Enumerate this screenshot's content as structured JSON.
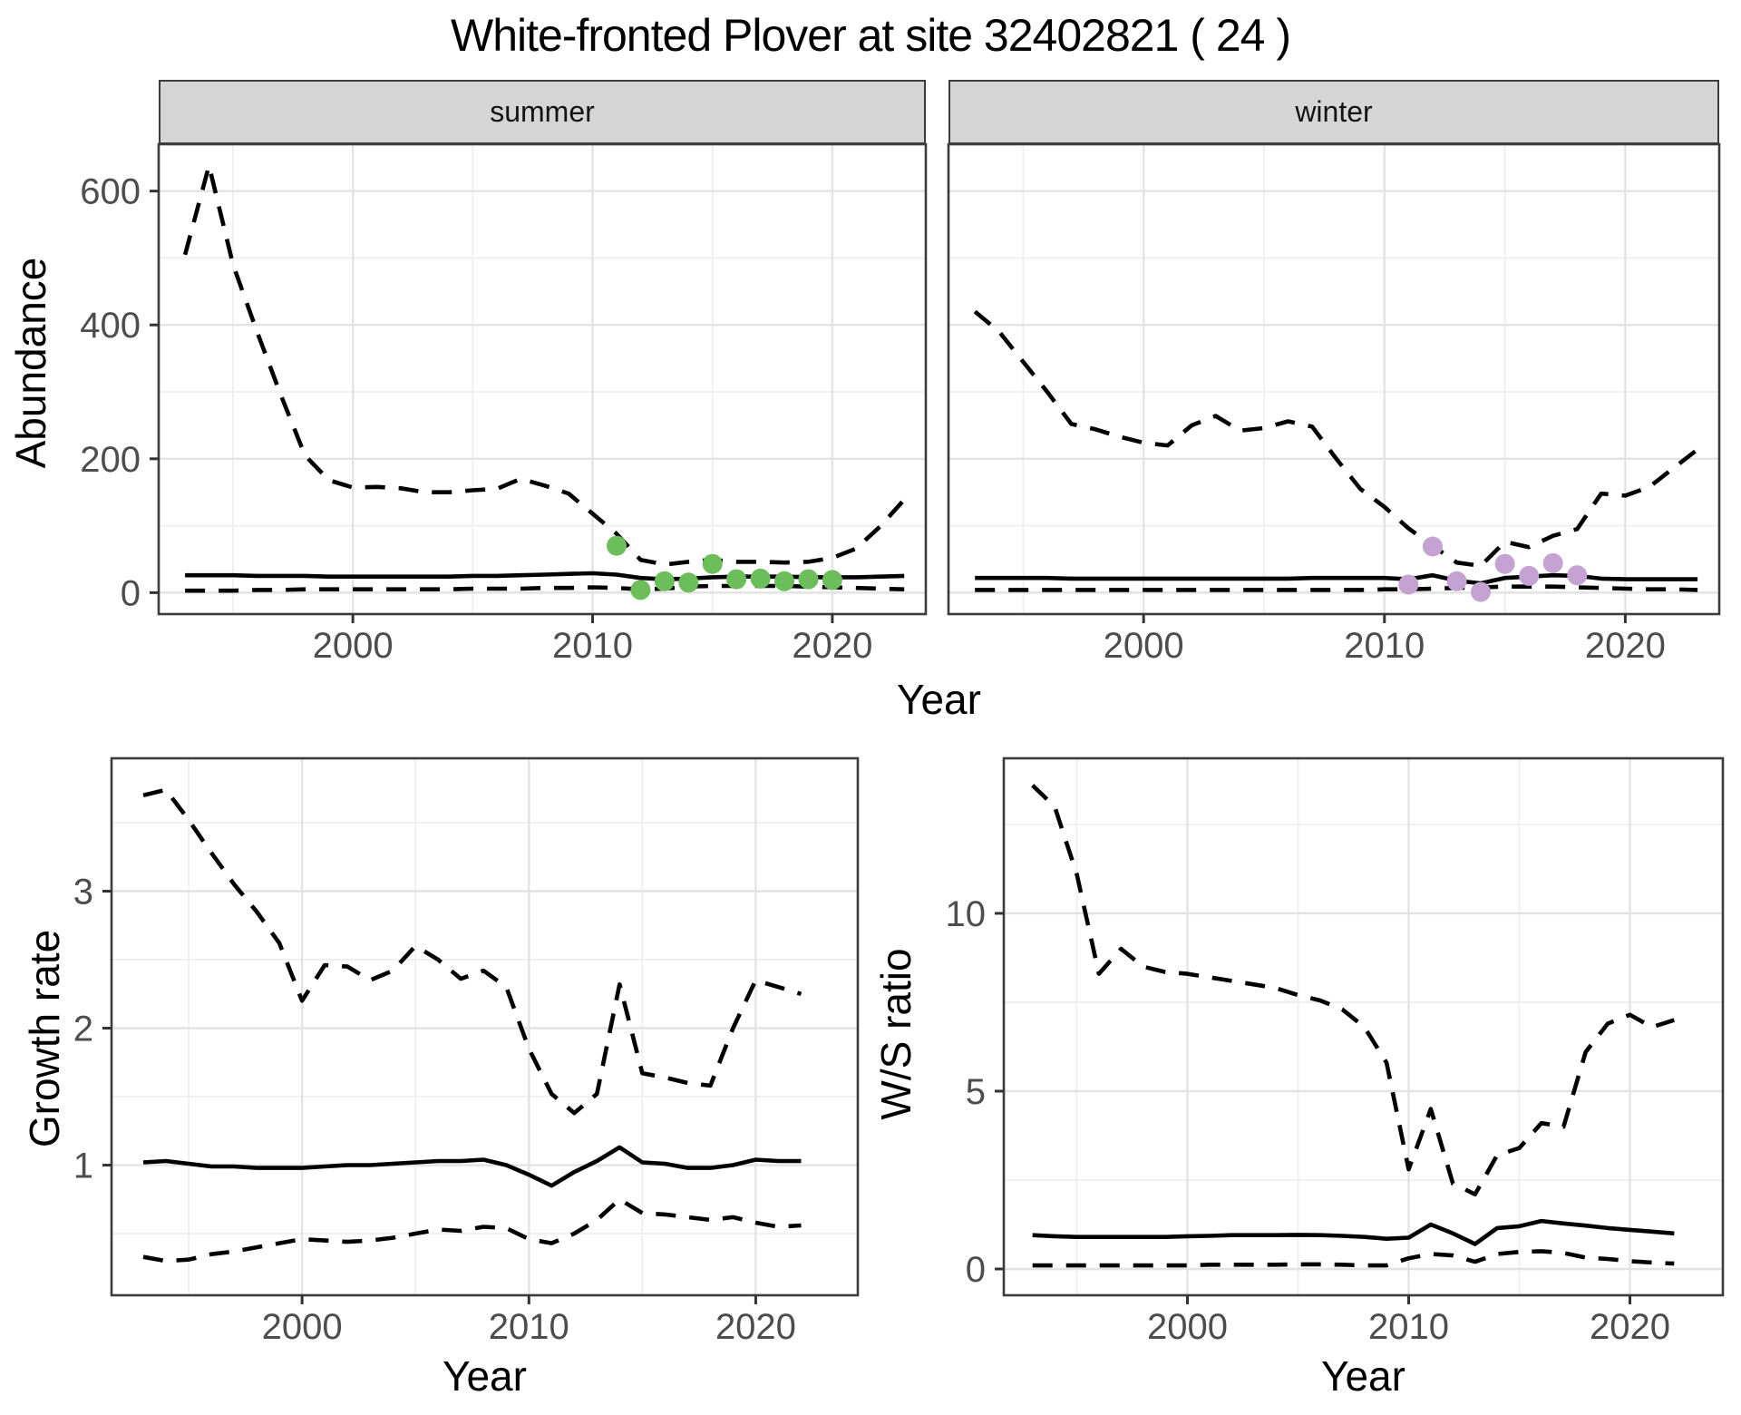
{
  "page": {
    "title": "White-fronted Plover at site 32402821 ( 24 )",
    "top_xlabel": "Year",
    "colors": {
      "summer_point": "#6cbe5b",
      "winter_point": "#c4a3d2",
      "line": "#000000",
      "grid_major": "#e3e3e3",
      "grid_minor": "#efefef",
      "panel_border": "#3c3c3c",
      "strip_fill": "#d5d5d5",
      "tick_text": "#4d4d4d"
    }
  },
  "chart_data": [
    {
      "id": "abundance-summer",
      "type": "line",
      "facet_label": "summer",
      "ylabel": "Abundance",
      "xlabel": "Year",
      "legend": "none",
      "grid": true,
      "x": [
        1993,
        1994,
        1995,
        1996,
        1997,
        1998,
        1999,
        2000,
        2001,
        2002,
        2003,
        2004,
        2005,
        2006,
        2007,
        2008,
        2009,
        2010,
        2011,
        2012,
        2013,
        2014,
        2015,
        2016,
        2017,
        2018,
        2019,
        2020,
        2021,
        2022,
        2023
      ],
      "series": [
        {
          "name": "upper_95",
          "style": "dashed",
          "values": [
            505,
            638,
            490,
            390,
            295,
            205,
            168,
            157,
            158,
            156,
            150,
            150,
            153,
            155,
            170,
            160,
            148,
            118,
            88,
            49,
            42,
            46,
            49,
            46,
            46,
            45,
            46,
            52,
            66,
            99,
            139
          ]
        },
        {
          "name": "median",
          "style": "solid",
          "values": [
            26,
            26,
            26,
            25,
            25,
            25,
            24,
            24,
            24,
            24,
            24,
            24,
            25,
            25,
            26,
            27,
            28,
            29,
            27,
            22,
            20,
            21,
            23,
            24,
            24,
            24,
            23,
            23,
            23,
            24,
            25
          ]
        },
        {
          "name": "lower_5",
          "style": "dashed",
          "values": [
            3,
            3,
            3,
            4,
            4,
            5,
            5,
            5,
            5,
            5,
            5,
            5,
            6,
            6,
            6,
            7,
            7,
            8,
            7,
            5,
            6,
            9,
            10,
            10,
            10,
            10,
            9,
            8,
            7,
            6,
            5
          ]
        }
      ],
      "points": {
        "name": "observed-counts-summer",
        "color": "#6cbe5b",
        "x": [
          2011,
          2012,
          2013,
          2014,
          2015,
          2016,
          2017,
          2018,
          2019,
          2020
        ],
        "y": [
          70,
          4,
          17,
          15,
          43,
          20,
          21,
          17,
          20,
          19
        ]
      },
      "xlim": [
        1991.9,
        2023.9
      ],
      "ylim": [
        -32,
        670
      ],
      "xticks": [
        2000,
        2010,
        2020
      ],
      "yticks": [
        0,
        200,
        400,
        600
      ],
      "xticks_minor": [
        1995,
        2005,
        2015
      ],
      "yticks_minor": [
        100,
        300,
        500
      ]
    },
    {
      "id": "abundance-winter",
      "type": "line",
      "facet_label": "winter",
      "ylabel": "Abundance",
      "xlabel": "Year",
      "legend": "none",
      "grid": true,
      "x": [
        1993,
        1994,
        1995,
        1996,
        1997,
        1998,
        1999,
        2000,
        2001,
        2002,
        2003,
        2004,
        2005,
        2006,
        2007,
        2008,
        2009,
        2010,
        2011,
        2012,
        2013,
        2014,
        2015,
        2016,
        2017,
        2018,
        2019,
        2020,
        2021,
        2022,
        2023
      ],
      "series": [
        {
          "name": "upper_95",
          "style": "dashed",
          "values": [
            420,
            390,
            345,
            300,
            252,
            244,
            233,
            224,
            220,
            250,
            264,
            242,
            246,
            256,
            248,
            200,
            155,
            128,
            96,
            70,
            45,
            40,
            76,
            68,
            85,
            95,
            148,
            145,
            158,
            186,
            214
          ]
        },
        {
          "name": "median",
          "style": "solid",
          "values": [
            22,
            22,
            22,
            22,
            21,
            21,
            21,
            21,
            21,
            21,
            21,
            21,
            21,
            21,
            22,
            22,
            22,
            22,
            20,
            26,
            18,
            14,
            22,
            24,
            26,
            25,
            21,
            20,
            20,
            20,
            20
          ]
        },
        {
          "name": "lower_5",
          "style": "dashed",
          "values": [
            4,
            4,
            4,
            4,
            4,
            4,
            4,
            4,
            4,
            4,
            4,
            4,
            4,
            4,
            4,
            4,
            4,
            5,
            5,
            6,
            7,
            8,
            9,
            9,
            9,
            8,
            7,
            6,
            5,
            5,
            4
          ]
        }
      ],
      "points": {
        "name": "observed-counts-winter",
        "color": "#c4a3d2",
        "x": [
          2011,
          2012,
          2013,
          2014,
          2015,
          2016,
          2017,
          2018
        ],
        "y": [
          12,
          69,
          17,
          1,
          43,
          25,
          44,
          26
        ]
      },
      "xlim": [
        1991.9,
        2023.9
      ],
      "ylim": [
        -32,
        670
      ],
      "xticks": [
        2000,
        2010,
        2020
      ],
      "yticks": [],
      "xticks_minor": [
        1995,
        2005,
        2015
      ],
      "yticks_minor": [
        100,
        300,
        500
      ],
      "ygrid": [
        0,
        200,
        400,
        600
      ]
    },
    {
      "id": "growth-rate",
      "type": "line",
      "ylabel": "Growth rate",
      "xlabel": "Year",
      "legend": "none",
      "grid": true,
      "x": [
        1993,
        1994,
        1995,
        1996,
        1997,
        1998,
        1999,
        2000,
        2001,
        2002,
        2003,
        2004,
        2005,
        2006,
        2007,
        2008,
        2009,
        2010,
        2011,
        2012,
        2013,
        2014,
        2015,
        2016,
        2017,
        2018,
        2019,
        2020,
        2021,
        2022
      ],
      "series": [
        {
          "name": "upper_95",
          "style": "dashed",
          "values": [
            3.7,
            3.74,
            3.52,
            3.28,
            3.05,
            2.85,
            2.62,
            2.2,
            2.46,
            2.45,
            2.35,
            2.42,
            2.6,
            2.5,
            2.36,
            2.42,
            2.3,
            1.85,
            1.52,
            1.38,
            1.52,
            2.32,
            1.67,
            1.64,
            1.6,
            1.58,
            2.0,
            2.35,
            2.3,
            2.25
          ]
        },
        {
          "name": "median",
          "style": "solid",
          "values": [
            1.02,
            1.03,
            1.01,
            0.99,
            0.99,
            0.98,
            0.98,
            0.98,
            0.99,
            1.0,
            1.0,
            1.01,
            1.02,
            1.03,
            1.03,
            1.04,
            1.0,
            0.93,
            0.85,
            0.95,
            1.03,
            1.13,
            1.02,
            1.01,
            0.98,
            0.98,
            1.0,
            1.04,
            1.03,
            1.03
          ]
        },
        {
          "name": "lower_5",
          "style": "dashed",
          "values": [
            0.33,
            0.3,
            0.31,
            0.35,
            0.37,
            0.4,
            0.43,
            0.46,
            0.45,
            0.44,
            0.45,
            0.47,
            0.5,
            0.53,
            0.52,
            0.55,
            0.54,
            0.46,
            0.43,
            0.5,
            0.6,
            0.75,
            0.65,
            0.64,
            0.62,
            0.6,
            0.62,
            0.58,
            0.55,
            0.56
          ]
        }
      ],
      "xlim": [
        1991.6,
        2024.5
      ],
      "ylim": [
        0.05,
        3.97
      ],
      "xticks": [
        2000,
        2010,
        2020
      ],
      "yticks": [
        1,
        2,
        3
      ],
      "xticks_minor": [
        1995,
        2005,
        2015
      ],
      "yticks_minor": [
        0.5,
        1.5,
        2.5,
        3.5
      ]
    },
    {
      "id": "ws-ratio",
      "type": "line",
      "ylabel": "W/S ratio",
      "xlabel": "Year",
      "legend": "none",
      "grid": true,
      "x": [
        1993,
        1994,
        1995,
        1996,
        1997,
        1998,
        1999,
        2000,
        2001,
        2002,
        2003,
        2004,
        2005,
        2006,
        2007,
        2008,
        2009,
        2010,
        2011,
        2012,
        2013,
        2014,
        2015,
        2016,
        2017,
        2018,
        2019,
        2020,
        2021,
        2022
      ],
      "series": [
        {
          "name": "upper_95",
          "style": "dashed",
          "values": [
            13.6,
            13.0,
            11.1,
            8.3,
            9.0,
            8.5,
            8.35,
            8.3,
            8.2,
            8.1,
            8.0,
            7.9,
            7.7,
            7.55,
            7.3,
            6.8,
            5.8,
            2.8,
            4.5,
            2.4,
            2.1,
            3.2,
            3.4,
            4.1,
            4.0,
            6.1,
            6.9,
            7.15,
            6.8,
            7.0
          ]
        },
        {
          "name": "median",
          "style": "solid",
          "values": [
            0.95,
            0.92,
            0.9,
            0.9,
            0.9,
            0.9,
            0.9,
            0.92,
            0.93,
            0.95,
            0.95,
            0.95,
            0.96,
            0.95,
            0.93,
            0.9,
            0.85,
            0.88,
            1.25,
            1.0,
            0.7,
            1.15,
            1.2,
            1.35,
            1.28,
            1.22,
            1.15,
            1.1,
            1.05,
            1.0
          ]
        },
        {
          "name": "lower_5",
          "style": "dashed",
          "values": [
            0.1,
            0.1,
            0.1,
            0.1,
            0.1,
            0.1,
            0.1,
            0.1,
            0.12,
            0.12,
            0.12,
            0.12,
            0.13,
            0.13,
            0.12,
            0.1,
            0.1,
            0.3,
            0.42,
            0.38,
            0.2,
            0.42,
            0.48,
            0.5,
            0.45,
            0.32,
            0.28,
            0.22,
            0.18,
            0.15
          ]
        }
      ],
      "xlim": [
        1991.7,
        2024.2
      ],
      "ylim": [
        -0.74,
        14.36
      ],
      "xticks": [
        2000,
        2010,
        2020
      ],
      "yticks": [
        0,
        5,
        10
      ],
      "xticks_minor": [
        1995,
        2005,
        2015
      ],
      "yticks_minor": [
        2.5,
        7.5,
        12.5
      ]
    }
  ]
}
